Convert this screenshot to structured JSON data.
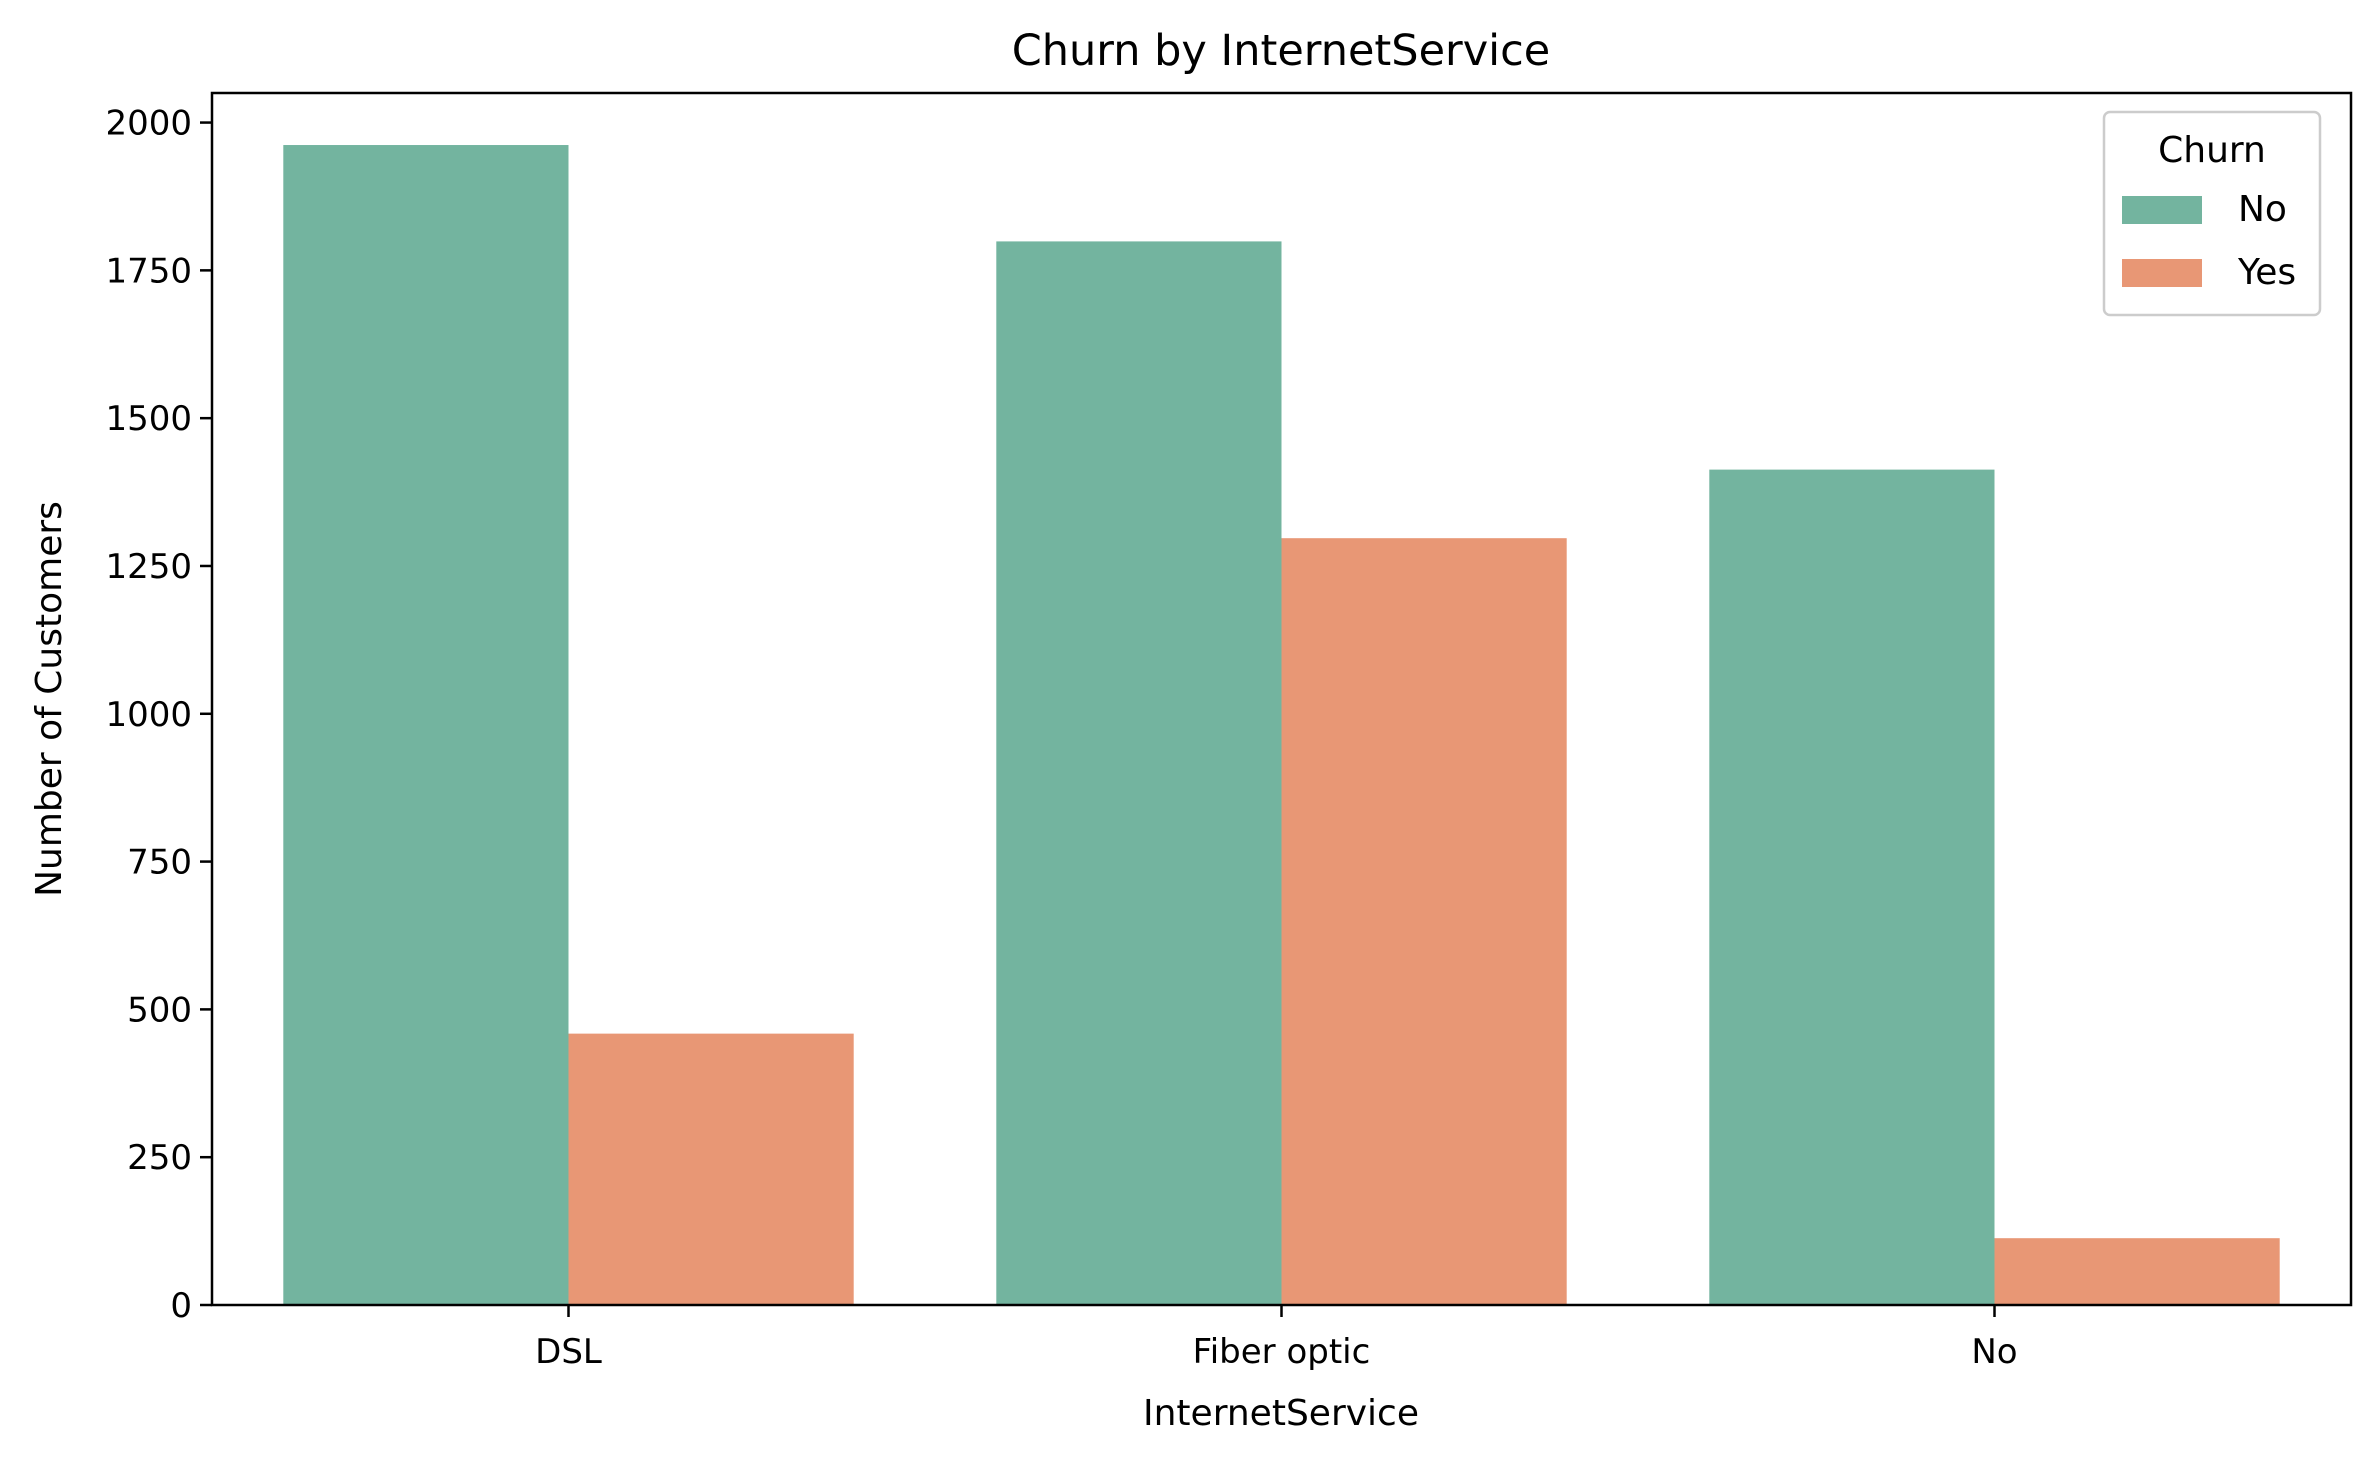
{
  "chart_data": {
    "type": "bar",
    "title": "Churn by InternetService",
    "xlabel": "InternetService",
    "ylabel": "Number of Customers",
    "categories": [
      "DSL",
      "Fiber optic",
      "No"
    ],
    "series": [
      {
        "name": "No",
        "values": [
          1962,
          1799,
          1413
        ],
        "color": "#73b49f"
      },
      {
        "name": "Yes",
        "values": [
          459,
          1297,
          113
        ],
        "color": "#e89775"
      }
    ],
    "ylim": [
      0,
      2050
    ],
    "yticks": [
      0,
      250,
      500,
      750,
      1000,
      1250,
      1500,
      1750,
      2000
    ],
    "grid": false,
    "legend": {
      "title": "Churn",
      "placement": "upper right"
    }
  }
}
